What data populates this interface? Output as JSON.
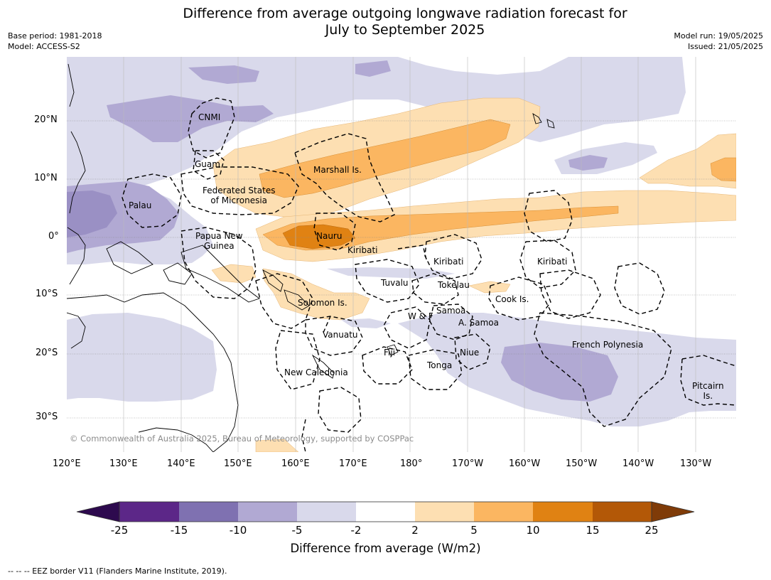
{
  "header": {
    "title_line1": "Difference from average outgoing longwave radiation forecast for",
    "title_line2": "July to September 2025",
    "base_period": "Base period: 1981-2018",
    "model": "Model: ACCESS-S2",
    "model_run": "Model run: 19/05/2025",
    "issued": "Issued: 21/05/2025"
  },
  "map": {
    "lat_labels": [
      "20°N",
      "10°N",
      "0°",
      "10°S",
      "20°S",
      "30°S"
    ],
    "lon_labels": [
      "120°E",
      "130°E",
      "140°E",
      "150°E",
      "160°E",
      "170°E",
      "180°",
      "170°W",
      "160°W",
      "150°W",
      "140°W",
      "130°W"
    ],
    "places": {
      "cnmi": "CNMI",
      "guam": "Guam",
      "marshall": "Marshall Is.",
      "fsm1": "Federated States",
      "fsm2": "of Micronesia",
      "palau": "Palau",
      "png1": "Papua New",
      "png2": "Guinea",
      "nauru": "Nauru",
      "kiribati_w": "Kiribati",
      "kiribati_c": "Kiribati",
      "kiribati_e": "Kiribati",
      "tuvalu": "Tuvalu",
      "tokelau": "Tokelau",
      "cook": "Cook Is.",
      "solomon": "Solomon Is.",
      "wf": "W & F",
      "samoa": "Samoa",
      "asamoa": "A. Samoa",
      "vanuatu": "Vanuatu",
      "fiji": "Fiji",
      "niue": "Niue",
      "tonga": "Tonga",
      "frenchpoly": "French Polynesia",
      "newcal": "New Caledonia",
      "pitcairn1": "Pitcairn",
      "pitcairn2": "Is."
    },
    "copyright": "© Commonwealth of Australia 2025, Bureau of Meteorology, supported by COSPPac"
  },
  "colorbar": {
    "ticks": [
      "-25",
      "-15",
      "-10",
      "-5",
      "-2",
      "2",
      "5",
      "10",
      "15",
      "25"
    ],
    "colors": [
      "#2d0a4e",
      "#5c2788",
      "#7f71b1",
      "#b1a9d3",
      "#d9d9eb",
      "#ffffff",
      "#fddfb2",
      "#fbb661",
      "#e08213",
      "#b35807",
      "#7f3b08"
    ],
    "title": "Difference from average (W/m2)"
  },
  "footnote": "--  --  -- EEZ border V11 (Flanders Marine Institute, 2019)."
}
